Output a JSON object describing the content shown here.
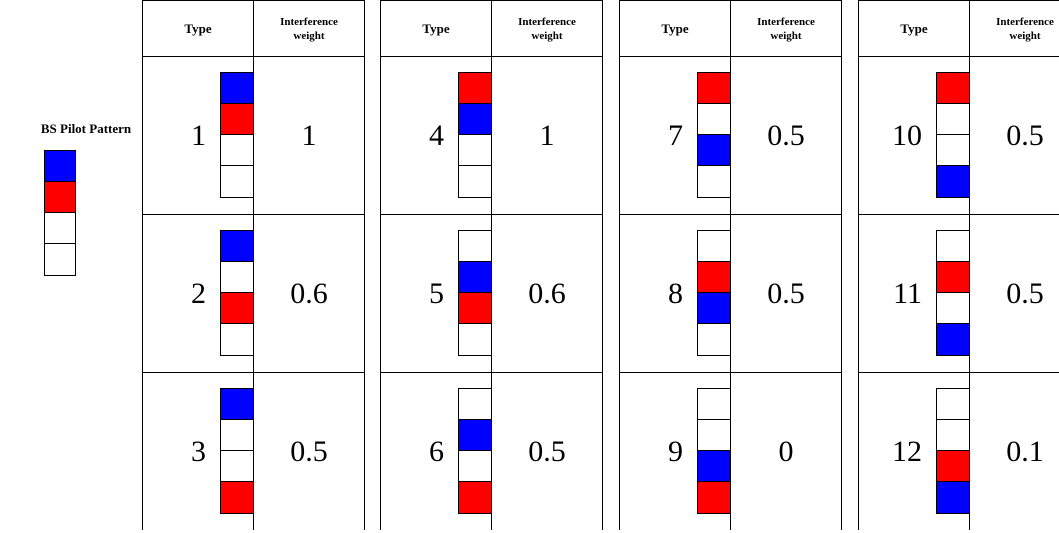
{
  "legend": {
    "title": "BS Pilot Pattern",
    "pattern": [
      "B",
      "R",
      "W",
      "W"
    ]
  },
  "header": {
    "type_label": "Type",
    "weight_label_line1": "Interference",
    "weight_label_line2": "weight"
  },
  "colors": {
    "blue": "#0000ff",
    "red": "#ff0000",
    "white": "#ffffff"
  },
  "groups": [
    {
      "rows": [
        {
          "type": "1",
          "pattern": [
            "B",
            "R",
            "W",
            "W"
          ],
          "weight": "1"
        },
        {
          "type": "2",
          "pattern": [
            "B",
            "W",
            "R",
            "W"
          ],
          "weight": "0.6"
        },
        {
          "type": "3",
          "pattern": [
            "B",
            "W",
            "W",
            "R"
          ],
          "weight": "0.5"
        }
      ]
    },
    {
      "rows": [
        {
          "type": "4",
          "pattern": [
            "R",
            "B",
            "W",
            "W"
          ],
          "weight": "1"
        },
        {
          "type": "5",
          "pattern": [
            "W",
            "B",
            "R",
            "W"
          ],
          "weight": "0.6"
        },
        {
          "type": "6",
          "pattern": [
            "W",
            "B",
            "W",
            "R"
          ],
          "weight": "0.5"
        }
      ]
    },
    {
      "rows": [
        {
          "type": "7",
          "pattern": [
            "R",
            "W",
            "B",
            "W"
          ],
          "weight": "0.5"
        },
        {
          "type": "8",
          "pattern": [
            "W",
            "R",
            "B",
            "W"
          ],
          "weight": "0.5"
        },
        {
          "type": "9",
          "pattern": [
            "W",
            "W",
            "B",
            "R"
          ],
          "weight": "0"
        }
      ]
    },
    {
      "rows": [
        {
          "type": "10",
          "pattern": [
            "R",
            "W",
            "W",
            "B"
          ],
          "weight": "0.5"
        },
        {
          "type": "11",
          "pattern": [
            "W",
            "R",
            "W",
            "B"
          ],
          "weight": "0.5"
        },
        {
          "type": "12",
          "pattern": [
            "W",
            "W",
            "R",
            "B"
          ],
          "weight": "0.1"
        }
      ]
    }
  ]
}
